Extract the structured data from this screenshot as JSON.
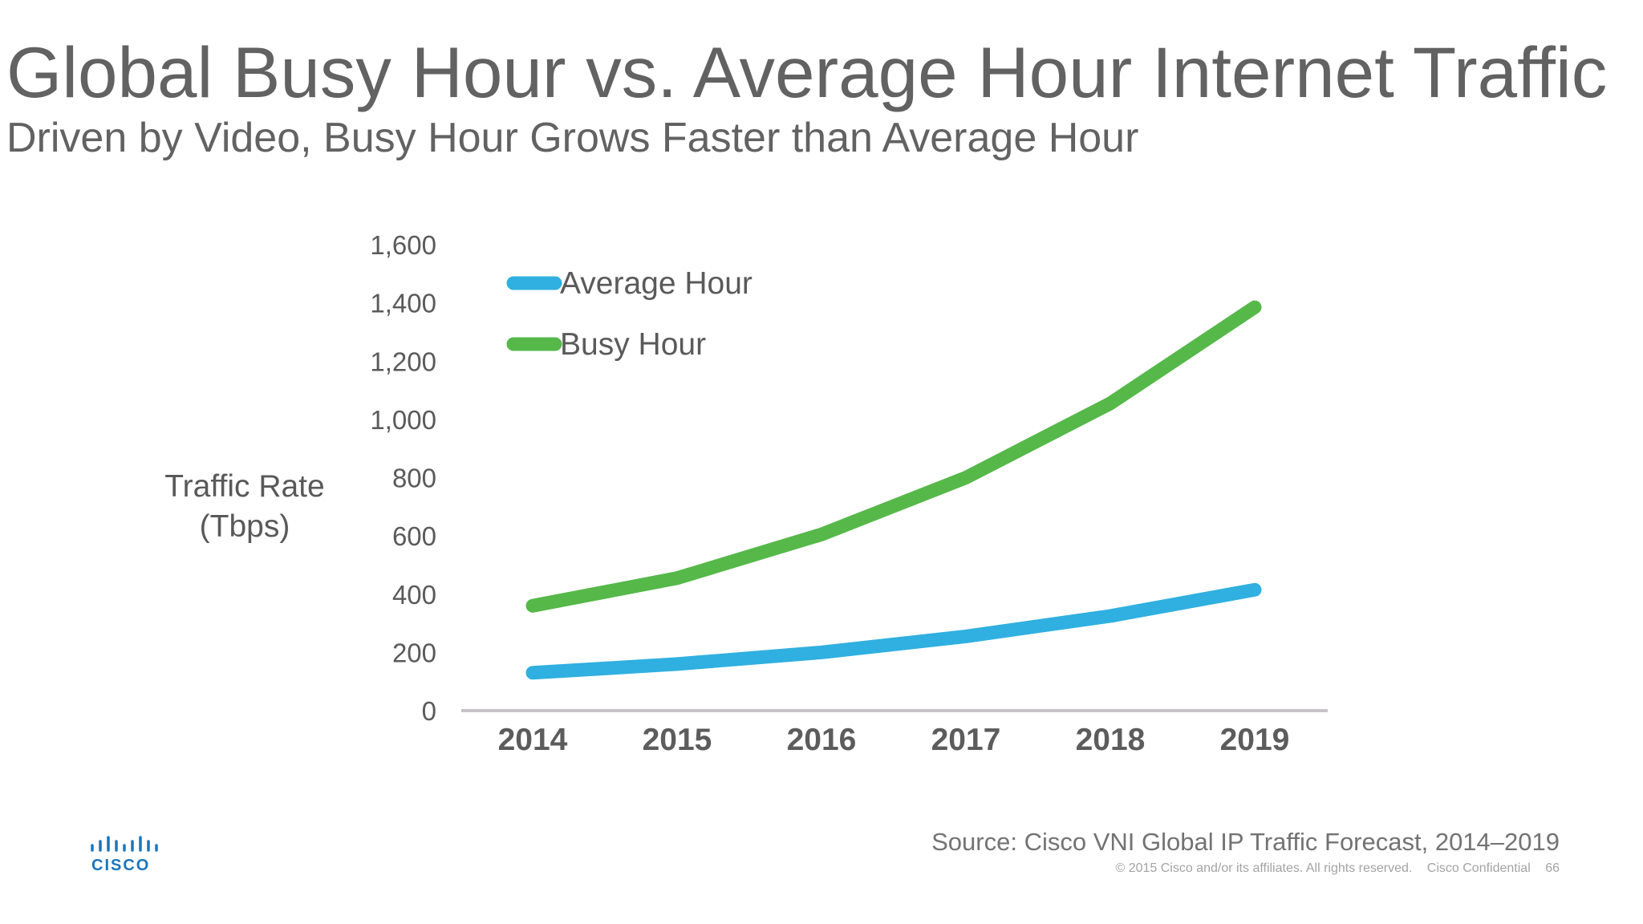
{
  "header": {
    "title": "Global Busy Hour vs. Average Hour Internet Traffic",
    "subtitle": "Driven by Video, Busy Hour Grows Faster than Average Hour"
  },
  "chart_data": {
    "type": "line",
    "categories": [
      "2014",
      "2015",
      "2016",
      "2017",
      "2018",
      "2019"
    ],
    "series": [
      {
        "name": "Average Hour",
        "color": "#2fb0e0",
        "values": [
          130,
          160,
          200,
          255,
          325,
          415
        ]
      },
      {
        "name": "Busy Hour",
        "color": "#55b849",
        "values": [
          360,
          455,
          605,
          800,
          1055,
          1385
        ]
      }
    ],
    "ylabel": "Traffic Rate (Tbps)",
    "ylabel_lines": [
      "Traffic Rate",
      "(Tbps)"
    ],
    "ylim": [
      0,
      1600
    ],
    "yticks": [
      0,
      200,
      400,
      600,
      800,
      1000,
      1200,
      1400,
      1600
    ],
    "ytick_labels": [
      "0",
      "200",
      "400",
      "600",
      "800",
      "1,000",
      "1,200",
      "1,400",
      "1,600"
    ],
    "grid": false,
    "legend": "top-left"
  },
  "footer": {
    "source": "Source: Cisco VNI Global IP Traffic Forecast, 2014–2019",
    "copyright": "© 2015  Cisco and/or its affiliates. All rights reserved.",
    "confidential": "Cisco Confidential",
    "page_number": "66",
    "logo_text": "CISCO"
  }
}
